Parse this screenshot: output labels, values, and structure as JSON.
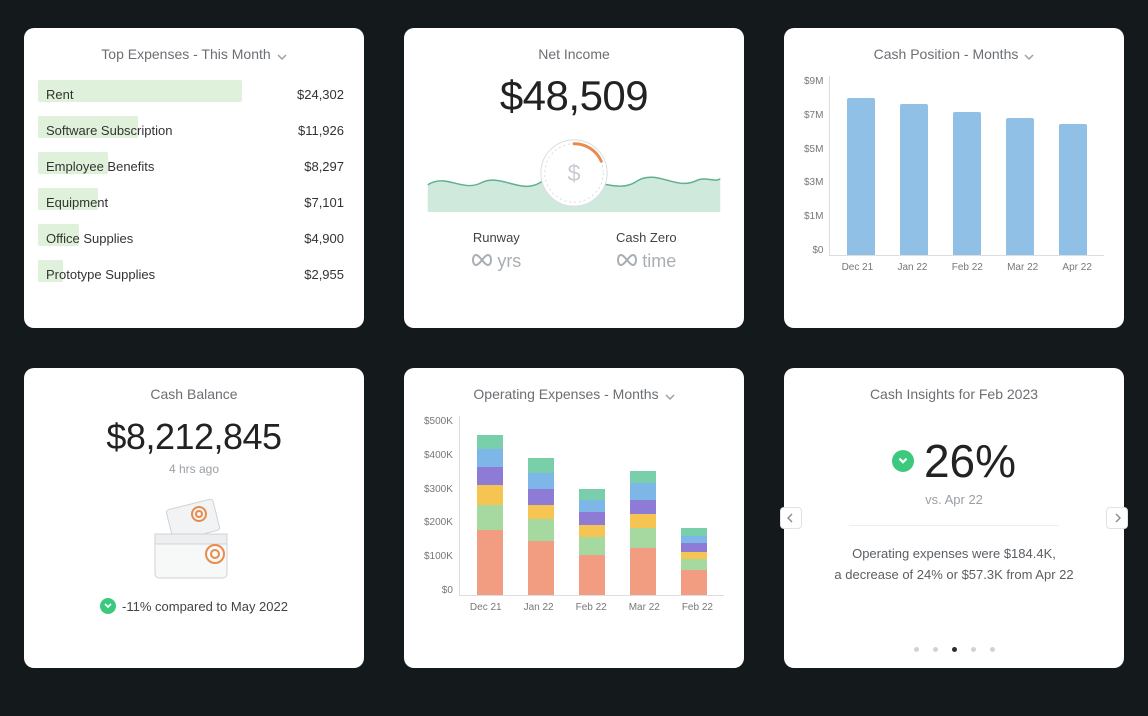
{
  "colors": {
    "card_bg": "#ffffff",
    "page_bg": "#14191c",
    "muted_text": "#6b6f73",
    "expense_bar": "#dff1da",
    "cash_bar": "#91c0e6",
    "accent_green": "#3cc97e"
  },
  "topExpenses": {
    "title": "Top Expenses - This Month",
    "max_value": 24302,
    "items": [
      {
        "label": "Rent",
        "amount": "$24,302",
        "value": 24302
      },
      {
        "label": "Software Subscription",
        "amount": "$11,926",
        "value": 11926
      },
      {
        "label": "Employee Benefits",
        "amount": "$8,297",
        "value": 8297
      },
      {
        "label": "Equipment",
        "amount": "$7,101",
        "value": 7101
      },
      {
        "label": "Office Supplies",
        "amount": "$4,900",
        "value": 4900
      },
      {
        "label": "Prototype Supplies",
        "amount": "$2,955",
        "value": 2955
      }
    ]
  },
  "netIncome": {
    "title": "Net Income",
    "value": "$48,509",
    "runway_label": "Runway",
    "runway_value": "yrs",
    "cashzero_label": "Cash Zero",
    "cashzero_value": "time",
    "area_color": "#cfe9dd",
    "line_color": "#5fb08e"
  },
  "cashPosition": {
    "title": "Cash Position - Months",
    "type": "bar",
    "ylabels": [
      "$9M",
      "$7M",
      "$5M",
      "$3M",
      "$1M",
      "$0"
    ],
    "ymax": 9,
    "categories": [
      "Dec 21",
      "Jan 22",
      "Feb 22",
      "Mar 22",
      "Apr 22"
    ],
    "values": [
      7.9,
      7.6,
      7.2,
      6.9,
      6.6
    ],
    "bar_color": "#91c0e6"
  },
  "cashBalance": {
    "title": "Cash Balance",
    "value": "$8,212,845",
    "asof": "4 hrs ago",
    "delta_text": "-11% compared to May 2022"
  },
  "opEx": {
    "title": "Operating Expenses - Months",
    "type": "stacked-bar",
    "ylabels": [
      "$500K",
      "$400K",
      "$300K",
      "$200K",
      "$100K",
      "$0"
    ],
    "ymax": 500,
    "categories": [
      "Dec 21",
      "Jan 22",
      "Feb 22",
      "Mar 22",
      "Feb 22"
    ],
    "segment_colors": [
      "#f29c82",
      "#a6d9a0",
      "#f6c453",
      "#8d7bd6",
      "#7eb6e8",
      "#78cfa9"
    ],
    "stacks": [
      [
        180,
        70,
        55,
        50,
        50,
        40
      ],
      [
        150,
        60,
        40,
        45,
        45,
        40
      ],
      [
        110,
        50,
        35,
        35,
        35,
        30
      ],
      [
        130,
        55,
        40,
        40,
        45,
        35
      ],
      [
        70,
        30,
        20,
        25,
        20,
        20
      ]
    ]
  },
  "cashInsights": {
    "title": "Cash Insights for Feb 2023",
    "percent": "26%",
    "vs": "vs. Apr 22",
    "line1": "Operating expenses were $184.4K,",
    "line2": "a decrease of 24% or $57.3K from Apr 22",
    "active_dot": 2,
    "dot_count": 5
  }
}
